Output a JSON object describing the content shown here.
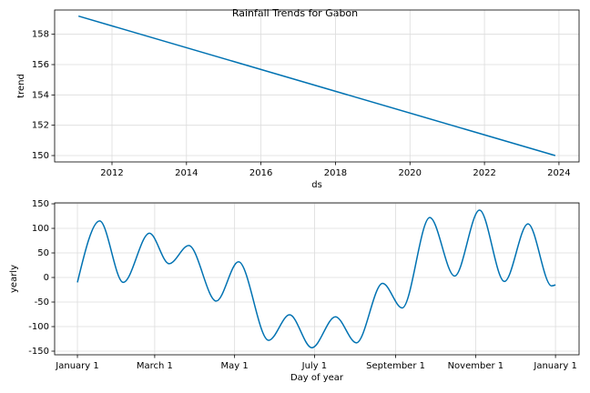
{
  "chart_data": [
    {
      "type": "line",
      "title": "Rainfall Trends for Gabon",
      "xlabel": "ds",
      "ylabel": "trend",
      "x": [
        2011.1,
        2023.9
      ],
      "values": [
        159.2,
        150.0
      ],
      "color": "#0072B2",
      "xlim": [
        2010.46,
        2024.54
      ],
      "xticks": [
        2012,
        2014,
        2016,
        2018,
        2020,
        2022,
        2024
      ],
      "ylim": [
        149.58,
        159.6
      ],
      "yticks": [
        150,
        152,
        154,
        156,
        158
      ],
      "grid": true
    },
    {
      "type": "line",
      "xlabel": "Day of year",
      "ylabel": "yearly",
      "x": [
        0,
        17,
        35,
        55,
        70,
        85,
        106,
        123,
        146,
        162,
        179,
        197,
        213,
        233,
        248,
        269,
        288,
        307,
        326,
        344,
        362,
        365
      ],
      "values": [
        -10,
        115,
        -10,
        90,
        28,
        65,
        -48,
        32,
        -128,
        -76,
        -143,
        -80,
        -133,
        -12,
        -62,
        122,
        3,
        137,
        -8,
        109,
        -17,
        -15
      ],
      "color": "#0072B2",
      "xlim": [
        -17.4,
        383
      ],
      "xticks": [
        {
          "value": 0,
          "label": "January 1"
        },
        {
          "value": 59,
          "label": "March 1"
        },
        {
          "value": 120,
          "label": "May 1"
        },
        {
          "value": 181,
          "label": "July 1"
        },
        {
          "value": 243,
          "label": "September 1"
        },
        {
          "value": 304,
          "label": "November 1"
        },
        {
          "value": 365,
          "label": "January 1"
        }
      ],
      "ylim": [
        -157.4,
        151.9
      ],
      "yticks": [
        -150,
        -100,
        -50,
        0,
        50,
        100,
        150
      ],
      "grid": true
    }
  ]
}
